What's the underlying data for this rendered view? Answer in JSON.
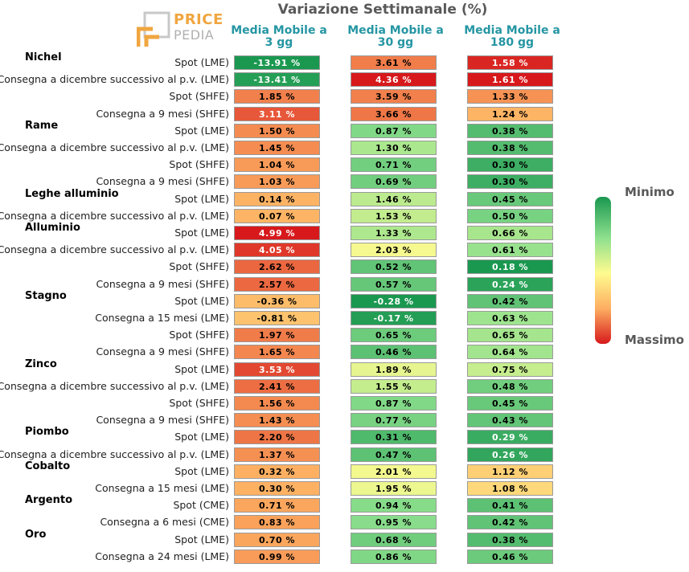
{
  "chart_data": {
    "type": "heatmap",
    "title": "Variazione Settimanale (%)",
    "columns": [
      "Media Mobile a 3 gg",
      "Media Mobile a 30 gg",
      "Media Mobile a 180 gg"
    ],
    "legend": {
      "min_label": "Minimo",
      "max_label": "Massimo",
      "min_color": "#1a9850",
      "mid_color": "#fffb8f",
      "max_color": "#d7191c"
    },
    "groups": [
      {
        "name": "Nichel",
        "rows": [
          {
            "label": "Spot (LME)",
            "values": [
              -13.91,
              3.61,
              1.58
            ]
          },
          {
            "label": "Consegna a dicembre successivo al p.v. (LME)",
            "values": [
              -13.41,
              4.36,
              1.61
            ]
          },
          {
            "label": "Spot (SHFE)",
            "values": [
              1.85,
              3.59,
              1.33
            ]
          },
          {
            "label": "Consegna a 9 mesi (SHFE)",
            "values": [
              3.11,
              3.66,
              1.24
            ]
          }
        ]
      },
      {
        "name": "Rame",
        "rows": [
          {
            "label": "Spot (LME)",
            "values": [
              1.5,
              0.87,
              0.38
            ]
          },
          {
            "label": "Consegna a dicembre successivo al p.v. (LME)",
            "values": [
              1.45,
              1.3,
              0.38
            ]
          },
          {
            "label": "Spot (SHFE)",
            "values": [
              1.04,
              0.71,
              0.3
            ]
          },
          {
            "label": "Consegna a 9 mesi (SHFE)",
            "values": [
              1.03,
              0.69,
              0.3
            ]
          }
        ]
      },
      {
        "name": "Leghe alluminio",
        "rows": [
          {
            "label": "Spot (LME)",
            "values": [
              0.14,
              1.46,
              0.45
            ]
          },
          {
            "label": "Consegna a dicembre successivo al p.v. (LME)",
            "values": [
              0.07,
              1.53,
              0.5
            ]
          }
        ]
      },
      {
        "name": "Alluminio",
        "rows": [
          {
            "label": "Spot (LME)",
            "values": [
              4.99,
              1.33,
              0.66
            ]
          },
          {
            "label": "Consegna a dicembre successivo al p.v. (LME)",
            "values": [
              4.05,
              2.03,
              0.61
            ]
          },
          {
            "label": "Spot (SHFE)",
            "values": [
              2.62,
              0.52,
              0.18
            ]
          },
          {
            "label": "Consegna a 9 mesi (SHFE)",
            "values": [
              2.57,
              0.57,
              0.24
            ]
          }
        ]
      },
      {
        "name": "Stagno",
        "rows": [
          {
            "label": "Spot (LME)",
            "values": [
              -0.36,
              -0.28,
              0.42
            ]
          },
          {
            "label": "Consegna a 15 mesi (LME)",
            "values": [
              -0.81,
              -0.17,
              0.63
            ]
          },
          {
            "label": "Spot (SHFE)",
            "values": [
              1.97,
              0.65,
              0.65
            ]
          },
          {
            "label": "Consegna a 9 mesi (SHFE)",
            "values": [
              1.65,
              0.46,
              0.64
            ]
          }
        ]
      },
      {
        "name": "Zinco",
        "rows": [
          {
            "label": "Spot (LME)",
            "values": [
              3.53,
              1.89,
              0.75
            ]
          },
          {
            "label": "Consegna a dicembre successivo al p.v. (LME)",
            "values": [
              2.41,
              1.55,
              0.48
            ]
          },
          {
            "label": "Spot (SHFE)",
            "values": [
              1.56,
              0.87,
              0.45
            ]
          },
          {
            "label": "Consegna a 9 mesi (SHFE)",
            "values": [
              1.43,
              0.77,
              0.43
            ]
          }
        ]
      },
      {
        "name": "Piombo",
        "rows": [
          {
            "label": "Spot (LME)",
            "values": [
              2.2,
              0.31,
              0.29
            ]
          },
          {
            "label": "Consegna a dicembre successivo al p.v. (LME)",
            "values": [
              1.37,
              0.47,
              0.26
            ]
          }
        ]
      },
      {
        "name": "Cobalto",
        "rows": [
          {
            "label": "Spot (LME)",
            "values": [
              0.32,
              2.01,
              1.12
            ]
          },
          {
            "label": "Consegna a 15 mesi (LME)",
            "values": [
              0.3,
              1.95,
              1.08
            ]
          }
        ]
      },
      {
        "name": "Argento",
        "rows": [
          {
            "label": "Spot (CME)",
            "values": [
              0.71,
              0.94,
              0.41
            ]
          },
          {
            "label": "Consegna a 6 mesi (CME)",
            "values": [
              0.83,
              0.95,
              0.42
            ]
          }
        ]
      },
      {
        "name": "Oro",
        "rows": [
          {
            "label": "Spot (LME)",
            "values": [
              0.7,
              0.68,
              0.38
            ]
          },
          {
            "label": "Consegna a 24 mesi (LME)",
            "values": [
              0.99,
              0.86,
              0.46
            ]
          }
        ]
      }
    ]
  },
  "logo": {
    "line1": "PRICE",
    "line2": "PEDIA"
  }
}
